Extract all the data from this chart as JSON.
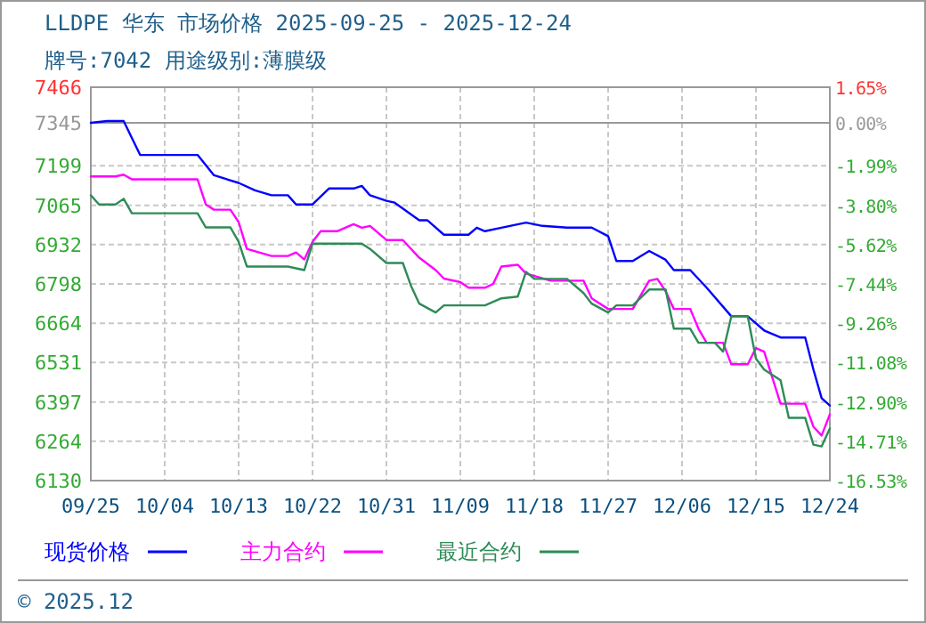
{
  "chart_data": {
    "type": "line",
    "title": "LLDPE 华东 市场价格 2025-09-25 - 2025-12-24",
    "subtitle": "牌号:7042 用途级别:薄膜级",
    "xlim": [
      "2025-09-25",
      "2025-12-24"
    ],
    "xticks": [
      {
        "value": "2025-09-25",
        "label": "09/25"
      },
      {
        "value": "2025-10-04",
        "label": "10/04"
      },
      {
        "value": "2025-10-13",
        "label": "10/13"
      },
      {
        "value": "2025-10-22",
        "label": "10/22"
      },
      {
        "value": "2025-10-31",
        "label": "10/31"
      },
      {
        "value": "2025-11-09",
        "label": "11/09"
      },
      {
        "value": "2025-11-18",
        "label": "11/18"
      },
      {
        "value": "2025-11-27",
        "label": "11/27"
      },
      {
        "value": "2025-12-06",
        "label": "12/06"
      },
      {
        "value": "2025-12-15",
        "label": "12/15"
      },
      {
        "value": "2025-12-24",
        "label": "12/24"
      }
    ],
    "ylim": [
      6130,
      7466
    ],
    "yticks": [
      7466,
      7345,
      7199,
      7065,
      6932,
      6798,
      6664,
      6531,
      6397,
      6264,
      6130
    ],
    "y2lim": [
      -16.53,
      1.65
    ],
    "y2ticks": [
      {
        "value": 1.65,
        "label": "1.65%"
      },
      {
        "value": 0,
        "label": "0.00%"
      },
      {
        "value": -1.99,
        "label": "-1.99%"
      },
      {
        "value": -3.8,
        "label": "-3.80%"
      },
      {
        "value": -5.62,
        "label": "-5.62%"
      },
      {
        "value": -7.44,
        "label": "-7.44%"
      },
      {
        "value": -9.26,
        "label": "-9.26%"
      },
      {
        "value": -11.08,
        "label": "-11.08%"
      },
      {
        "value": -12.9,
        "label": "-12.90%"
      },
      {
        "value": -14.71,
        "label": "-14.71%"
      },
      {
        "value": -16.53,
        "label": "-16.53%"
      }
    ],
    "ref_lines": [
      {
        "axis": "y",
        "value": 7345,
        "color": "#999999"
      }
    ],
    "grid": true,
    "legend": "bottom",
    "line_style": "solid",
    "annotations": [
      "© 2025.12"
    ],
    "series": [
      {
        "name": "现货价格",
        "color": "#0000ff",
        "x": [
          "2025-09-25",
          "2025-09-27",
          "2025-09-29",
          "2025-10-01",
          "2025-10-08",
          "2025-10-10",
          "2025-10-13",
          "2025-10-15",
          "2025-10-17",
          "2025-10-19",
          "2025-10-20",
          "2025-10-22",
          "2025-10-24",
          "2025-10-27",
          "2025-10-28",
          "2025-10-29",
          "2025-10-31",
          "2025-11-01",
          "2025-11-04",
          "2025-11-05",
          "2025-11-07",
          "2025-11-10",
          "2025-11-11",
          "2025-11-12",
          "2025-11-14",
          "2025-11-17",
          "2025-11-19",
          "2025-11-22",
          "2025-11-25",
          "2025-11-27",
          "2025-11-28",
          "2025-11-30",
          "2025-12-02",
          "2025-12-04",
          "2025-12-05",
          "2025-12-07",
          "2025-12-09",
          "2025-12-12",
          "2025-12-14",
          "2025-12-16",
          "2025-12-18",
          "2025-12-21",
          "2025-12-22",
          "2025-12-23",
          "2025-12-24"
        ],
        "values": [
          7345,
          7351,
          7351,
          7236,
          7236,
          7167,
          7141,
          7116,
          7099,
          7099,
          7068,
          7068,
          7122,
          7122,
          7131,
          7099,
          7080,
          7074,
          7014,
          7014,
          6965,
          6965,
          6989,
          6977,
          6989,
          7006,
          6995,
          6989,
          6989,
          6960,
          6876,
          6876,
          6910,
          6880,
          6845,
          6845,
          6785,
          6688,
          6688,
          6640,
          6616,
          6616,
          6507,
          6410,
          6385
        ]
      },
      {
        "name": "主力合约",
        "color": "#ff00ff",
        "x": [
          "2025-09-25",
          "2025-09-28",
          "2025-09-29",
          "2025-09-30",
          "2025-10-08",
          "2025-10-09",
          "2025-10-10",
          "2025-10-12",
          "2025-10-13",
          "2025-10-14",
          "2025-10-17",
          "2025-10-19",
          "2025-10-20",
          "2025-10-21",
          "2025-10-22",
          "2025-10-23",
          "2025-10-25",
          "2025-10-27",
          "2025-10-28",
          "2025-10-29",
          "2025-10-31",
          "2025-11-02",
          "2025-11-04",
          "2025-11-06",
          "2025-11-07",
          "2025-11-09",
          "2025-11-10",
          "2025-11-12",
          "2025-11-13",
          "2025-11-14",
          "2025-11-16",
          "2025-11-17",
          "2025-11-20",
          "2025-11-24",
          "2025-11-25",
          "2025-11-27",
          "2025-11-30",
          "2025-12-02",
          "2025-12-03",
          "2025-12-04",
          "2025-12-05",
          "2025-12-07",
          "2025-12-08",
          "2025-12-09",
          "2025-12-11",
          "2025-12-12",
          "2025-12-14",
          "2025-12-15",
          "2025-12-16",
          "2025-12-18",
          "2025-12-21",
          "2025-12-22",
          "2025-12-23",
          "2025-12-24"
        ],
        "values": [
          7163,
          7163,
          7169,
          7153,
          7153,
          7068,
          7050,
          7050,
          7008,
          6917,
          6893,
          6893,
          6905,
          6881,
          6941,
          6977,
          6977,
          7001,
          6989,
          6995,
          6947,
          6947,
          6887,
          6845,
          6816,
          6804,
          6785,
          6785,
          6798,
          6857,
          6863,
          6833,
          6809,
          6809,
          6749,
          6713,
          6713,
          6809,
          6815,
          6773,
          6713,
          6713,
          6646,
          6598,
          6598,
          6525,
          6525,
          6580,
          6568,
          6391,
          6391,
          6313,
          6283,
          6355
        ]
      },
      {
        "name": "最近合约",
        "color": "#2e8b57",
        "x": [
          "2025-09-25",
          "2025-09-26",
          "2025-09-28",
          "2025-09-29",
          "2025-09-30",
          "2025-10-08",
          "2025-10-09",
          "2025-10-12",
          "2025-10-13",
          "2025-10-14",
          "2025-10-19",
          "2025-10-21",
          "2025-10-22",
          "2025-10-28",
          "2025-10-29",
          "2025-10-31",
          "2025-11-02",
          "2025-11-03",
          "2025-11-04",
          "2025-11-06",
          "2025-11-07",
          "2025-11-12",
          "2025-11-13",
          "2025-11-14",
          "2025-11-16",
          "2025-11-17",
          "2025-11-18",
          "2025-11-22",
          "2025-11-24",
          "2025-11-25",
          "2025-11-27",
          "2025-11-28",
          "2025-11-30",
          "2025-12-02",
          "2025-12-04",
          "2025-12-05",
          "2025-12-07",
          "2025-12-08",
          "2025-12-10",
          "2025-12-11",
          "2025-12-12",
          "2025-12-14",
          "2025-12-15",
          "2025-12-16",
          "2025-12-18",
          "2025-12-19",
          "2025-12-21",
          "2025-12-22",
          "2025-12-23",
          "2025-12-24"
        ],
        "values": [
          7099,
          7068,
          7068,
          7087,
          7038,
          7038,
          6990,
          6990,
          6941,
          6857,
          6857,
          6845,
          6935,
          6935,
          6917,
          6869,
          6869,
          6791,
          6731,
          6701,
          6725,
          6725,
          6737,
          6749,
          6755,
          6839,
          6815,
          6815,
          6767,
          6731,
          6701,
          6725,
          6725,
          6779,
          6779,
          6646,
          6646,
          6598,
          6598,
          6568,
          6688,
          6688,
          6544,
          6507,
          6471,
          6343,
          6343,
          6252,
          6246,
          6307
        ]
      }
    ]
  }
}
